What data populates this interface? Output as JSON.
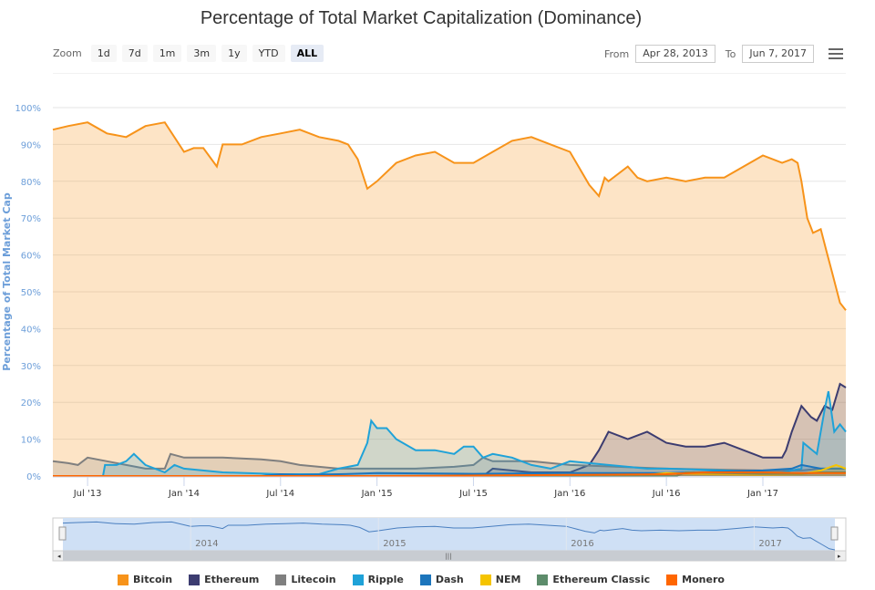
{
  "toolbar": {
    "zoom_label": "Zoom",
    "zoom_buttons": [
      "1d",
      "7d",
      "1m",
      "3m",
      "1y",
      "YTD",
      "ALL"
    ],
    "active_zoom": "ALL",
    "from_label": "From",
    "from_value": "Apr 28, 2013",
    "to_label": "To",
    "to_value": "Jun 7, 2017",
    "menu_icon": "hamburger-menu-icon"
  },
  "navigator": {
    "year_labels": [
      "2014",
      "2015",
      "2016",
      "2017"
    ],
    "scroll_left_icon": "arrow-left-icon",
    "scroll_right_icon": "arrow-right-icon",
    "grip_icon": "grip-icon"
  },
  "colors": {
    "Bitcoin": "#f7931a",
    "Ethereum": "#3c3c70",
    "Litecoin": "#7f7f7f",
    "Ripple": "#1fa2d8",
    "Dash": "#1c75bc",
    "NEM": "#f5c400",
    "Ethereum Classic": "#5d8c6b",
    "Monero": "#ff6600",
    "axis_text": "#6c9ed9",
    "navigator_fill": "#cfe0f5"
  },
  "chart_data": {
    "type": "area",
    "title": "Percentage of Total Market Capitalization (Dominance)",
    "xlabel": "",
    "ylabel": "Percentage of Total Market Cap",
    "ylim": [
      0,
      100
    ],
    "yticks": [
      "0%",
      "10%",
      "20%",
      "30%",
      "40%",
      "50%",
      "60%",
      "70%",
      "80%",
      "90%",
      "100%"
    ],
    "x_tick_labels": [
      "Jul '13",
      "Jan '14",
      "Jul '14",
      "Jan '15",
      "Jul '15",
      "Jan '16",
      "Jul '16",
      "Jan '17"
    ],
    "x_tick_positions": [
      2013.5,
      2014.0,
      2014.5,
      2015.0,
      2015.5,
      2016.0,
      2016.5,
      2017.0
    ],
    "xlim": [
      2013.32,
      2017.43
    ],
    "grid": true,
    "legend_position": "bottom",
    "series": [
      {
        "name": "Bitcoin",
        "x": [
          2013.32,
          2013.4,
          2013.5,
          2013.6,
          2013.7,
          2013.8,
          2013.9,
          2014.0,
          2014.05,
          2014.1,
          2014.17,
          2014.2,
          2014.3,
          2014.4,
          2014.5,
          2014.6,
          2014.7,
          2014.8,
          2014.85,
          2014.9,
          2014.95,
          2015.0,
          2015.1,
          2015.2,
          2015.3,
          2015.4,
          2015.5,
          2015.6,
          2015.7,
          2015.8,
          2015.9,
          2016.0,
          2016.1,
          2016.15,
          2016.18,
          2016.2,
          2016.3,
          2016.35,
          2016.4,
          2016.5,
          2016.6,
          2016.7,
          2016.8,
          2016.9,
          2017.0,
          2017.1,
          2017.15,
          2017.18,
          2017.2,
          2017.23,
          2017.26,
          2017.3,
          2017.33,
          2017.36,
          2017.4,
          2017.43
        ],
        "values": [
          94,
          95,
          96,
          93,
          92,
          95,
          96,
          88,
          89,
          89,
          84,
          90,
          90,
          92,
          93,
          94,
          92,
          91,
          90,
          86,
          78,
          80,
          85,
          87,
          88,
          85,
          85,
          88,
          91,
          92,
          90,
          88,
          79,
          76,
          81,
          80,
          84,
          81,
          80,
          81,
          80,
          81,
          81,
          84,
          87,
          85,
          86,
          85,
          80,
          70,
          66,
          67,
          61,
          55,
          47,
          45
        ]
      },
      {
        "name": "Ethereum",
        "x": [
          2013.32,
          2015.55,
          2015.6,
          2015.8,
          2016.0,
          2016.1,
          2016.15,
          2016.2,
          2016.3,
          2016.4,
          2016.5,
          2016.6,
          2016.7,
          2016.8,
          2016.9,
          2017.0,
          2017.1,
          2017.12,
          2017.15,
          2017.2,
          2017.25,
          2017.28,
          2017.32,
          2017.36,
          2017.4,
          2017.43
        ],
        "values": [
          0,
          0,
          2,
          1,
          1,
          3,
          7,
          12,
          10,
          12,
          9,
          8,
          8,
          9,
          7,
          5,
          5,
          7,
          12,
          19,
          16,
          15,
          19,
          18,
          25,
          24
        ]
      },
      {
        "name": "Litecoin",
        "x": [
          2013.32,
          2013.4,
          2013.45,
          2013.5,
          2013.6,
          2013.7,
          2013.8,
          2013.9,
          2013.93,
          2014.0,
          2014.2,
          2014.4,
          2014.5,
          2014.6,
          2014.7,
          2014.8,
          2015.0,
          2015.2,
          2015.4,
          2015.5,
          2015.55,
          2015.6,
          2015.8,
          2016.0,
          2016.5,
          2017.0,
          2017.2,
          2017.3,
          2017.43
        ],
        "values": [
          4,
          3.5,
          3,
          5,
          4,
          3,
          2,
          2,
          6,
          5,
          5,
          4.5,
          4,
          3,
          2.5,
          2,
          2,
          2,
          2.5,
          3,
          5,
          4,
          4,
          3,
          2,
          1.5,
          1.5,
          2,
          2
        ]
      },
      {
        "name": "Ripple",
        "x": [
          2013.32,
          2013.58,
          2013.59,
          2013.65,
          2013.7,
          2013.74,
          2013.8,
          2013.9,
          2013.95,
          2014.0,
          2014.2,
          2014.5,
          2014.7,
          2014.8,
          2014.9,
          2014.95,
          2014.97,
          2015.0,
          2015.05,
          2015.1,
          2015.2,
          2015.3,
          2015.4,
          2015.45,
          2015.5,
          2015.55,
          2015.6,
          2015.7,
          2015.8,
          2015.9,
          2016.0,
          2016.2,
          2016.4,
          2016.5,
          2016.8,
          2017.0,
          2017.1,
          2017.2,
          2017.21,
          2017.28,
          2017.32,
          2017.34,
          2017.37,
          2017.4,
          2017.43
        ],
        "values": [
          0,
          0,
          3,
          3,
          4,
          6,
          3,
          1,
          3,
          2,
          1,
          0.5,
          0.5,
          2,
          3,
          9,
          15,
          13,
          13,
          10,
          7,
          7,
          6,
          8,
          8,
          5,
          6,
          5,
          3,
          2,
          4,
          3,
          2,
          2,
          1.5,
          1,
          1,
          2,
          9,
          6,
          18,
          23,
          12,
          14,
          12
        ]
      },
      {
        "name": "Dash",
        "x": [
          2013.32,
          2014.4,
          2014.5,
          2014.6,
          2014.8,
          2015.0,
          2015.5,
          2016.0,
          2016.5,
          2017.0,
          2017.15,
          2017.2,
          2017.3,
          2017.43
        ],
        "values": [
          0,
          0,
          0.5,
          0.3,
          0.5,
          0.8,
          0.6,
          0.8,
          0.8,
          1.5,
          2,
          3,
          2,
          2
        ]
      },
      {
        "name": "NEM",
        "x": [
          2013.32,
          2016.3,
          2016.4,
          2016.5,
          2016.7,
          2017.0,
          2017.2,
          2017.3,
          2017.38,
          2017.43
        ],
        "values": [
          0,
          0,
          0.3,
          0.8,
          0.5,
          0.3,
          0.5,
          1.5,
          3,
          2
        ]
      },
      {
        "name": "Ethereum Classic",
        "x": [
          2013.32,
          2016.55,
          2016.6,
          2016.8,
          2017.0,
          2017.2,
          2017.3,
          2017.43
        ],
        "values": [
          0,
          0,
          1,
          0.8,
          0.6,
          0.6,
          1,
          1
        ]
      },
      {
        "name": "Monero",
        "x": [
          2013.32,
          2015.0,
          2016.0,
          2016.5,
          2016.7,
          2017.0,
          2017.2,
          2017.43
        ],
        "values": [
          0,
          0,
          0.3,
          0.5,
          1,
          1,
          0.8,
          0.8
        ]
      }
    ]
  }
}
